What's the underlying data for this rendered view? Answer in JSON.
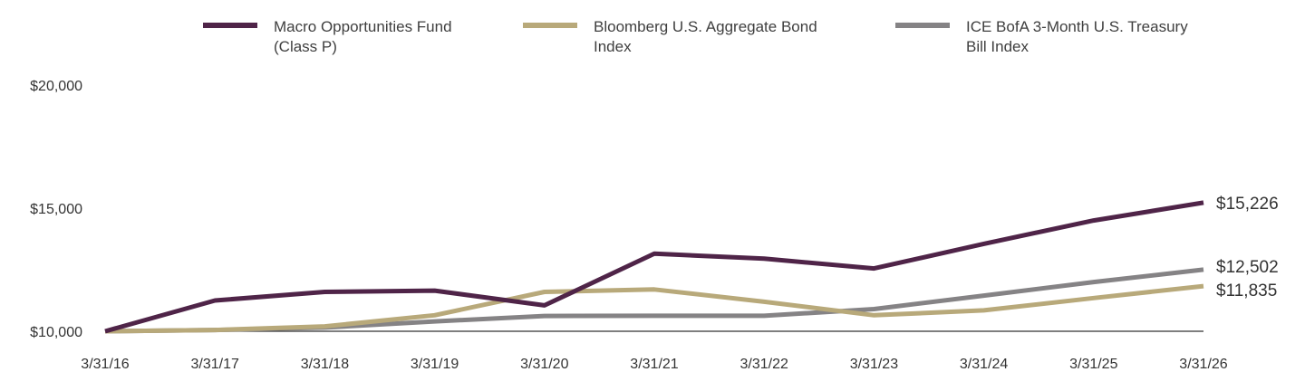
{
  "chart_data": {
    "type": "line",
    "title": "",
    "xlabel": "",
    "ylabel": "",
    "x": [
      "3/31/16",
      "3/31/17",
      "3/31/18",
      "3/31/19",
      "3/31/20",
      "3/31/21",
      "3/31/22",
      "3/31/23",
      "3/31/24",
      "3/31/25",
      "3/31/26"
    ],
    "ylim": [
      10000,
      20000
    ],
    "yticks": [
      {
        "value": 10000,
        "label": "$10,000"
      },
      {
        "value": 15000,
        "label": "$15,000"
      },
      {
        "value": 20000,
        "label": "$20,000"
      }
    ],
    "grid": false,
    "legend_position": "top",
    "series": [
      {
        "name_lines": [
          "Macro Opportunities Fund",
          "(Class P)"
        ],
        "color": "#4f2448",
        "values": [
          10000,
          11250,
          11600,
          11650,
          11050,
          13150,
          12950,
          12550,
          13550,
          14500,
          15226
        ],
        "end_label": "$15,226"
      },
      {
        "name_lines": [
          "Bloomberg U.S. Aggregate Bond",
          "Index"
        ],
        "color": "#b8a97a",
        "values": [
          10000,
          10050,
          10200,
          10650,
          11600,
          11700,
          11200,
          10650,
          10850,
          11350,
          11835
        ],
        "end_label": "$11,835"
      },
      {
        "name_lines": [
          "ICE BofA 3-Month U.S. Treasury",
          "Bill Index"
        ],
        "color": "#858385",
        "values": [
          10000,
          10050,
          10150,
          10400,
          10620,
          10630,
          10630,
          10900,
          11450,
          12000,
          12502
        ],
        "end_label": "$12,502"
      }
    ]
  }
}
